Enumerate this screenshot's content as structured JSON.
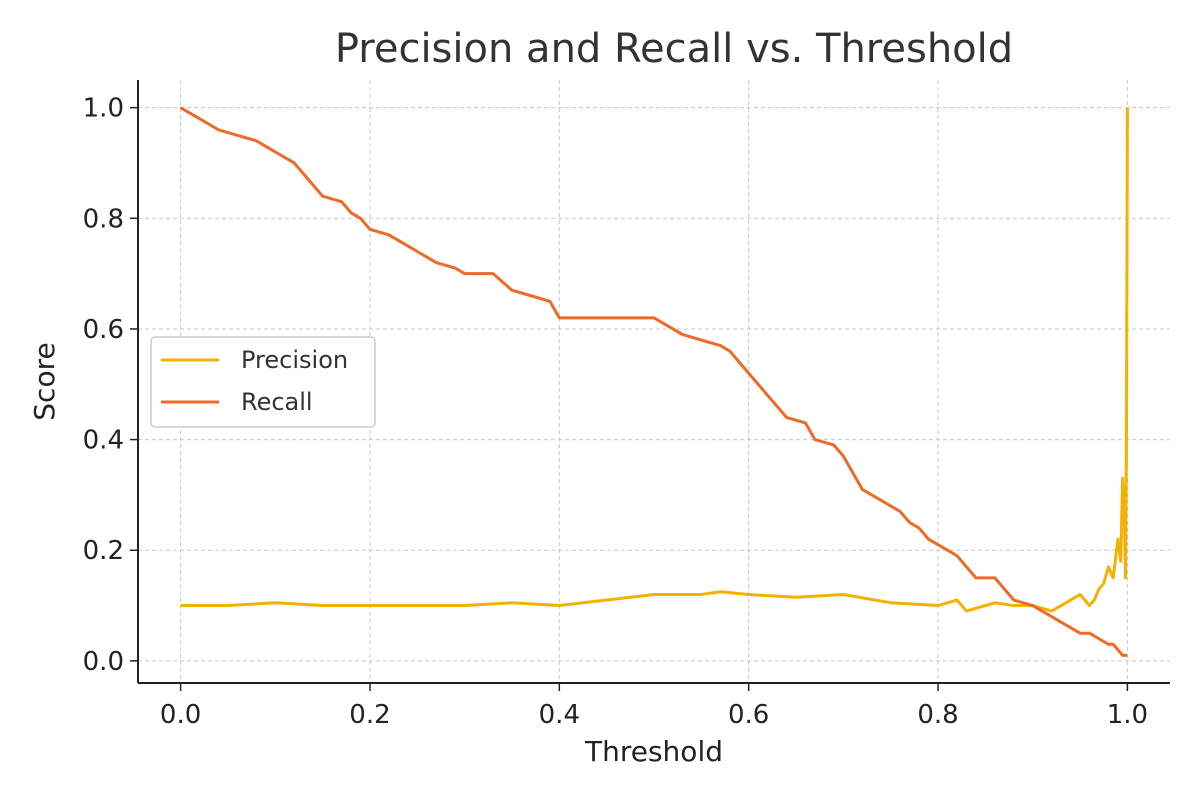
{
  "chart_data": {
    "type": "line",
    "title": "Precision and Recall vs. Threshold",
    "xlabel": "Threshold",
    "ylabel": "Score",
    "xlim": [
      -0.045,
      1.045
    ],
    "ylim": [
      -0.04,
      1.05
    ],
    "xticks": [
      "0.0",
      "0.2",
      "0.4",
      "0.6",
      "0.8",
      "1.0"
    ],
    "yticks": [
      "0.0",
      "0.2",
      "0.4",
      "0.6",
      "0.8",
      "1.0"
    ],
    "grid": true,
    "legend_position": "center-left",
    "series": [
      {
        "name": "Precision",
        "color": "#f5b000",
        "x": [
          0.0,
          0.05,
          0.1,
          0.15,
          0.2,
          0.25,
          0.3,
          0.35,
          0.4,
          0.45,
          0.5,
          0.55,
          0.57,
          0.6,
          0.65,
          0.7,
          0.75,
          0.8,
          0.82,
          0.83,
          0.86,
          0.88,
          0.9,
          0.92,
          0.94,
          0.95,
          0.96,
          0.965,
          0.97,
          0.975,
          0.98,
          0.985,
          0.99,
          0.993,
          0.995,
          0.997,
          0.998,
          0.999,
          1.0
        ],
        "y": [
          0.1,
          0.1,
          0.105,
          0.1,
          0.1,
          0.1,
          0.1,
          0.105,
          0.1,
          0.11,
          0.12,
          0.12,
          0.125,
          0.12,
          0.115,
          0.12,
          0.105,
          0.1,
          0.11,
          0.09,
          0.105,
          0.1,
          0.1,
          0.09,
          0.11,
          0.12,
          0.1,
          0.11,
          0.13,
          0.14,
          0.17,
          0.15,
          0.22,
          0.18,
          0.33,
          0.25,
          0.15,
          0.4,
          1.0
        ]
      },
      {
        "name": "Recall",
        "color": "#ef6a25",
        "x": [
          0.0,
          0.01,
          0.02,
          0.03,
          0.04,
          0.06,
          0.08,
          0.1,
          0.12,
          0.13,
          0.14,
          0.15,
          0.17,
          0.18,
          0.19,
          0.2,
          0.22,
          0.23,
          0.24,
          0.25,
          0.27,
          0.29,
          0.3,
          0.33,
          0.35,
          0.37,
          0.39,
          0.4,
          0.43,
          0.5,
          0.51,
          0.52,
          0.53,
          0.55,
          0.57,
          0.58,
          0.59,
          0.6,
          0.62,
          0.63,
          0.64,
          0.66,
          0.67,
          0.69,
          0.7,
          0.71,
          0.72,
          0.74,
          0.76,
          0.77,
          0.78,
          0.79,
          0.8,
          0.81,
          0.82,
          0.83,
          0.84,
          0.86,
          0.87,
          0.88,
          0.9,
          0.91,
          0.92,
          0.93,
          0.94,
          0.95,
          0.96,
          0.97,
          0.98,
          0.985,
          0.99,
          0.995,
          0.998,
          1.0
        ],
        "y": [
          1.0,
          0.99,
          0.98,
          0.97,
          0.96,
          0.95,
          0.94,
          0.92,
          0.9,
          0.88,
          0.86,
          0.84,
          0.83,
          0.81,
          0.8,
          0.78,
          0.77,
          0.76,
          0.75,
          0.74,
          0.72,
          0.71,
          0.7,
          0.7,
          0.67,
          0.66,
          0.65,
          0.62,
          0.62,
          0.62,
          0.61,
          0.6,
          0.59,
          0.58,
          0.57,
          0.56,
          0.54,
          0.52,
          0.48,
          0.46,
          0.44,
          0.43,
          0.4,
          0.39,
          0.37,
          0.34,
          0.31,
          0.29,
          0.27,
          0.25,
          0.24,
          0.22,
          0.21,
          0.2,
          0.19,
          0.17,
          0.15,
          0.15,
          0.13,
          0.11,
          0.1,
          0.09,
          0.08,
          0.07,
          0.06,
          0.05,
          0.05,
          0.04,
          0.03,
          0.03,
          0.02,
          0.01,
          0.01,
          0.01
        ]
      }
    ]
  }
}
